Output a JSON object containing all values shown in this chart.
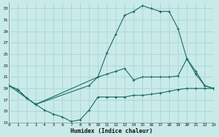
{
  "xlabel": "Humidex (Indice chaleur)",
  "bg_color": "#c8eae8",
  "grid_color": "#aad4d0",
  "line_color": "#1a6b65",
  "xlim": [
    0,
    23
  ],
  "ylim": [
    13,
    34
  ],
  "yticks": [
    13,
    15,
    17,
    19,
    21,
    23,
    25,
    27,
    29,
    31,
    33
  ],
  "xticks": [
    0,
    1,
    2,
    3,
    4,
    5,
    6,
    7,
    8,
    9,
    10,
    11,
    12,
    13,
    14,
    15,
    16,
    17,
    18,
    19,
    20,
    21,
    22,
    23
  ],
  "line_dip_x": [
    0,
    1,
    2,
    3,
    4,
    5,
    6,
    7,
    8,
    9,
    10,
    11,
    12,
    13,
    14,
    15,
    16,
    17,
    18,
    19,
    20,
    21,
    22,
    23
  ],
  "line_dip_y": [
    19.5,
    18.8,
    17.3,
    16.2,
    15.2,
    14.5,
    14.0,
    13.2,
    13.5,
    15.2,
    17.5,
    17.5,
    17.5,
    17.5,
    17.8,
    17.8,
    18.0,
    18.2,
    18.5,
    18.8,
    19.0,
    19.0,
    19.0,
    19.0
  ],
  "line_top_x": [
    0,
    1,
    2,
    3,
    10,
    11,
    12,
    13,
    14,
    15,
    16,
    17,
    18,
    19,
    20,
    21,
    22,
    23
  ],
  "line_top_y": [
    19.5,
    18.8,
    17.3,
    16.2,
    21.0,
    25.2,
    28.5,
    31.8,
    32.5,
    33.5,
    33.0,
    32.5,
    32.5,
    29.5,
    24.2,
    21.5,
    19.5,
    19.0
  ],
  "line_mid_x": [
    0,
    2,
    3,
    9,
    10,
    11,
    12,
    13,
    14,
    15,
    16,
    17,
    18,
    19,
    20,
    21,
    22,
    23
  ],
  "line_mid_y": [
    19.5,
    17.3,
    16.2,
    19.5,
    21.0,
    21.5,
    22.0,
    22.5,
    20.5,
    21.0,
    21.0,
    21.0,
    21.0,
    21.2,
    24.2,
    22.0,
    19.5,
    19.0
  ]
}
